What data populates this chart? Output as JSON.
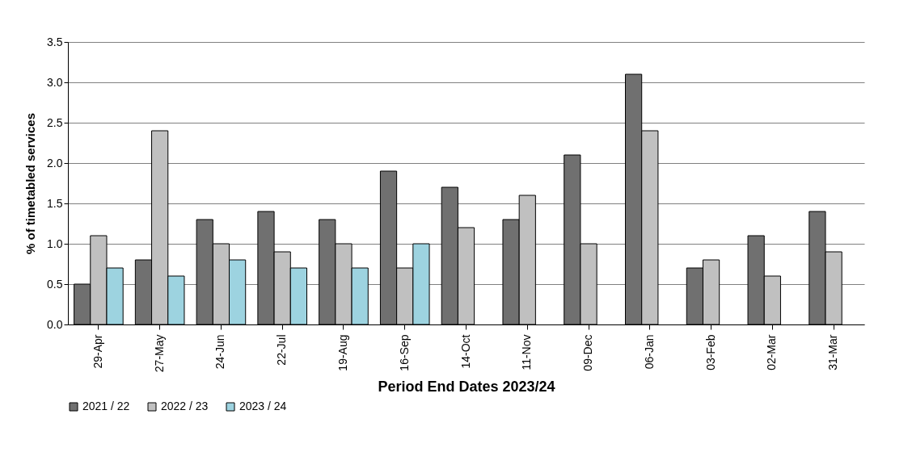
{
  "chart_data": {
    "type": "bar",
    "xlabel": "Period End Dates 2023/24",
    "ylabel": "% of timetabled services",
    "categories": [
      "29-Apr",
      "27-May",
      "24-Jun",
      "22-Jul",
      "19-Aug",
      "16-Sep",
      "14-Oct",
      "11-Nov",
      "09-Dec",
      "06-Jan",
      "03-Feb",
      "02-Mar",
      "31-Mar"
    ],
    "series": [
      {
        "name": "2021 / 22",
        "color": "#707070",
        "values": [
          0.5,
          0.8,
          1.3,
          1.4,
          1.3,
          1.9,
          1.7,
          1.3,
          2.1,
          3.1,
          0.7,
          1.1,
          1.4
        ]
      },
      {
        "name": "2022 / 23",
        "color": "#c0c0c0",
        "values": [
          1.1,
          2.4,
          1.0,
          0.9,
          1.0,
          0.7,
          1.2,
          1.6,
          1.0,
          2.4,
          0.8,
          0.6,
          0.9
        ]
      },
      {
        "name": "2023 / 24",
        "color": "#9dd3e0",
        "values": [
          0.7,
          0.6,
          0.8,
          0.7,
          0.7,
          1.0,
          null,
          null,
          null,
          null,
          null,
          null,
          null
        ]
      }
    ],
    "ylim": [
      0,
      3.5
    ],
    "yticks": [
      {
        "value": 0,
        "label": "0.0"
      },
      0.5,
      {
        "value": 1,
        "label": "1.0"
      },
      1.5,
      {
        "value": 2,
        "label": "2.0"
      },
      2.5,
      {
        "value": 3,
        "label": "3.0"
      },
      3.5
    ],
    "grid": "y",
    "legend": "bottom"
  }
}
